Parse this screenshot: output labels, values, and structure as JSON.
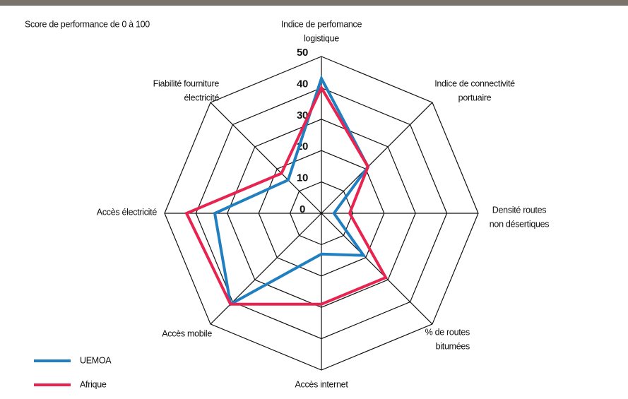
{
  "chart_data": {
    "type": "radar",
    "subtitle": "Score de performance de 0 à 100",
    "categories": [
      [
        "Indice de perfomance",
        "logistique"
      ],
      [
        "Indice de connectivité",
        "portuaire"
      ],
      [
        "Densité routes",
        "non désertiques"
      ],
      [
        "% de routes",
        "bitumées"
      ],
      [
        "Accès internet"
      ],
      [
        "Accès mobile"
      ],
      [
        "Accès électricité"
      ],
      [
        "Fiabilité fourniture",
        "électricité"
      ]
    ],
    "series": [
      {
        "name": "UEMOA",
        "color": "#1f7fc0",
        "values": [
          43,
          21,
          4,
          19,
          13,
          41,
          34,
          15
        ]
      },
      {
        "name": "Afrique",
        "color": "#e8234f",
        "values": [
          40,
          21,
          9,
          29,
          29,
          41,
          43,
          18
        ]
      }
    ],
    "ylim": [
      0,
      50
    ],
    "yticks": [
      0,
      10,
      20,
      30,
      40,
      50
    ],
    "grid": true
  }
}
